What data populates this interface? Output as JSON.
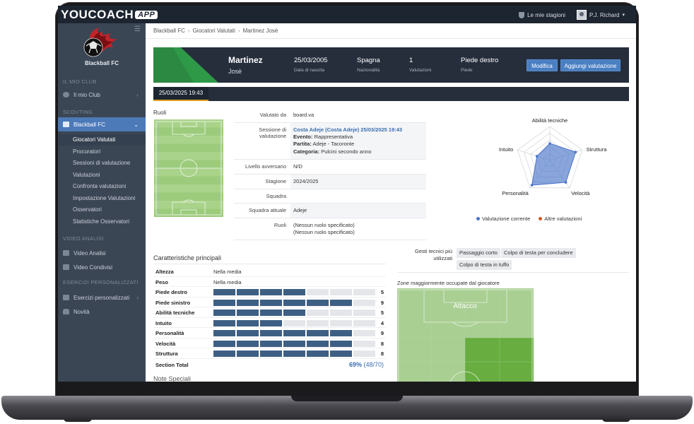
{
  "app": {
    "logo": "YOUCOACH",
    "logo_badge": "APP",
    "seasons_label": "Le mie stagioni",
    "user_name": "P.J. Richard"
  },
  "sidebar": {
    "club_name": "Blackball FC",
    "section_club": "IL MIO CLUB",
    "item_mio_club": "Il mio Club",
    "section_scouting": "SCOUTING",
    "item_team": "Blackball FC",
    "subitems": [
      "Giocatori Valutati",
      "Procuratori",
      "Sessioni di valutazione",
      "Valutazioni",
      "Confronta valutazioni",
      "Impostazione Valutazioni",
      "Osservatori",
      "Statistiche Osservatori"
    ],
    "section_video": "VIDEO ANALISI",
    "item_video_analisi": "Video Analisi",
    "item_video_condivisi": "Video Condivisi",
    "section_esercizi": "ESERCIZI PERSONALIZZATI",
    "item_esercizi": "Esercizi personalizzati",
    "item_novita": "Novità"
  },
  "breadcrumb": [
    "Blackball FC",
    "Giocatori Valutati",
    "Martinez Josè"
  ],
  "player": {
    "last_name": "Martinez",
    "first_name": "Josè",
    "birth_date": "25/03/2005",
    "birth_date_label": "Data di nascita",
    "nationality": "Spagna",
    "nationality_label": "Nazionalità",
    "evaluations": "1",
    "evaluations_label": "Valutazioni",
    "foot": "Piede destro",
    "foot_label": "Piede"
  },
  "buttons": {
    "edit": "Modifica",
    "add_evaluation": "Aggiungi valutazione"
  },
  "evaluation_tab": "25/03/2025 19:43",
  "roles_label": "Ruoli",
  "info": {
    "valutato_da_label": "Valutato da",
    "valutato_da": "board.va",
    "sessione_label": "Sessione di valutazione",
    "sessione_link": "Costa Adeje (Costa Adeje) 25/03/2025 19:43",
    "evento_label": "Evento:",
    "evento": "Rappresentativa",
    "partita_label": "Partita:",
    "partita": "Adeje - Tacoronte",
    "categoria_label": "Categoria:",
    "categoria": "Pulcini secondo anno",
    "livello_label": "Livello avversario",
    "livello": "N/D",
    "stagione_label": "Stagione",
    "stagione": "2024/2025",
    "squadra_label": "Squadra",
    "squadra": "",
    "squadra_attuale_label": "Squadra attuale",
    "squadra_attuale": "Adeje",
    "ruoli_label": "Ruoli",
    "ruoli_1": "(Nessun ruolo specificato)",
    "ruoli_2": "(Nessun ruolo specificato)"
  },
  "radar": {
    "labels": [
      "Abilità tecniche",
      "Struttura",
      "Velocità",
      "Personalità",
      "Intuito"
    ],
    "values": [
      5,
      8,
      8,
      9,
      4
    ],
    "max": 10,
    "legend_current": "Valutazione corrente",
    "legend_other": "Altre valutazioni",
    "color_current": "#4a74c9",
    "color_other": "#d0572a"
  },
  "characteristics": {
    "title": "Caratteristiche principali",
    "text_rows": [
      {
        "label": "Altezza",
        "value": "Nella media"
      },
      {
        "label": "Peso",
        "value": "Nella media"
      }
    ],
    "score_rows": [
      {
        "label": "Piede destro",
        "score": 5
      },
      {
        "label": "Piede sinistro",
        "score": 9
      },
      {
        "label": "Abilità tecniche",
        "score": 5
      },
      {
        "label": "Intuito",
        "score": 4
      },
      {
        "label": "Personalità",
        "score": 9
      },
      {
        "label": "Velocità",
        "score": 8
      },
      {
        "label": "Struttura",
        "score": 8
      }
    ],
    "total_label": "Section Total",
    "total_pct": "69%",
    "total_frac": "(48/70)",
    "bar_color": "#3e5f84"
  },
  "notes_title": "Note Speciali",
  "gesti": {
    "label": "Gesti tecnici più utilizzati",
    "tags": [
      "Passaggio corto",
      "Colpo di testa per concludere",
      "Colpo di testa in tuffo"
    ]
  },
  "zones": {
    "title": "Zone maggiormente occupate dal giocatore",
    "attack_label": "Attacco"
  }
}
